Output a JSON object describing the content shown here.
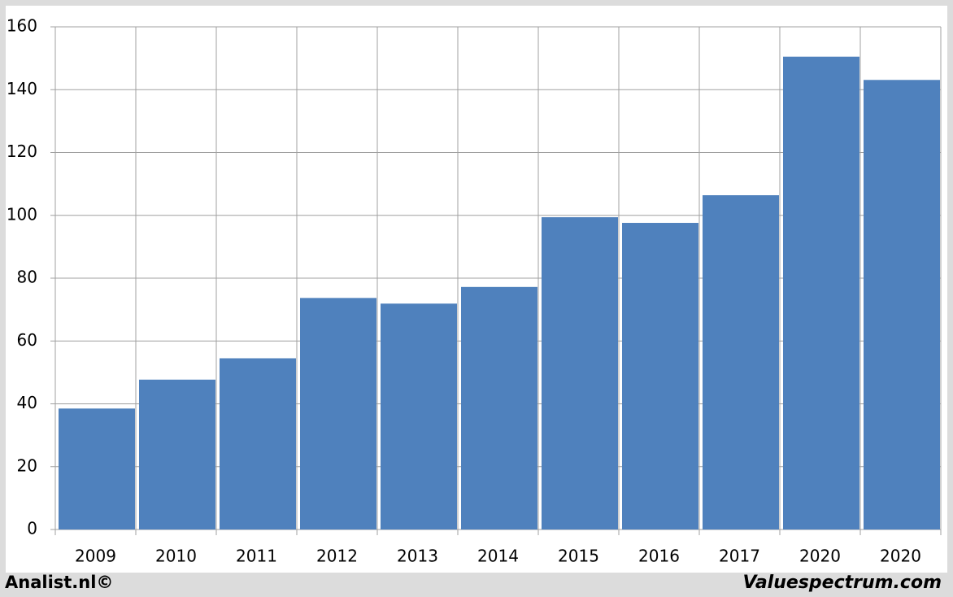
{
  "chart_data": {
    "type": "bar",
    "categories": [
      "2009",
      "2010",
      "2011",
      "2012",
      "2013",
      "2014",
      "2015",
      "2016",
      "2017",
      "2020",
      "2020"
    ],
    "values": [
      38.5,
      47.7,
      54.5,
      73.7,
      71.9,
      77.2,
      99.4,
      97.6,
      106.4,
      150.5,
      143.1
    ],
    "color": "#4f81bd",
    "ylim": [
      0,
      160
    ],
    "yticks": [
      0,
      20,
      40,
      60,
      80,
      100,
      120,
      140,
      160
    ],
    "grid": true,
    "footer_left": "Analist.nl©",
    "footer_right": "Valuespectrum.com"
  }
}
